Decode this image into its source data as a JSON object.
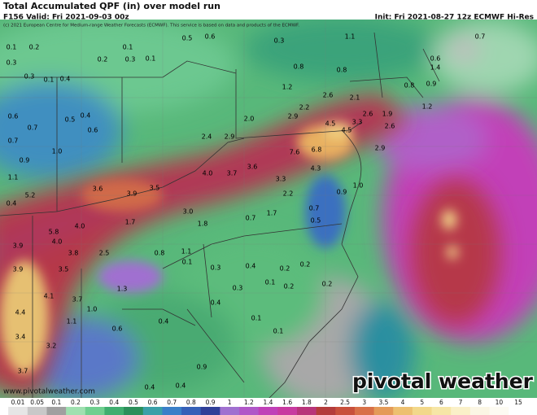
{
  "header": {
    "title": "Total Accumulated QPF (in) over model run",
    "valid": "F156 Valid: Fri 2021-09-03 00z",
    "init": "Init: Fri 2021-08-27 12z ECMWF Hi-Res",
    "copyright": "(c) 2021 European Centre for Medium-range Weather Forecasts (ECMWF). This service is based on data and products of the ECMWF."
  },
  "footer": {
    "url": "www.pivotalweather.com",
    "logo": "pivotal weather"
  },
  "map_labels": [
    "0.1",
    "0.2",
    "0.3",
    "0.3",
    "0.1",
    "0.4",
    "0.2",
    "0.1",
    "0.3",
    "0.1",
    "0.5",
    "0.6",
    "0.3",
    "1.1",
    "0.6",
    "0.7",
    "0.5",
    "0.4",
    "0.6",
    "0.7",
    "0.9",
    "1.0",
    "1.1",
    "0.4",
    "5.2",
    "5.8",
    "4.0",
    "4.0",
    "3.6",
    "3.9",
    "3.5",
    "1.7",
    "2.5",
    "3.8",
    "3.5",
    "3.9",
    "3.9",
    "4.1",
    "3.7",
    "4.4",
    "3.4",
    "3.2",
    "3.7",
    "2.4",
    "4.0",
    "3.7",
    "3.6",
    "3.3",
    "2.2",
    "2.9",
    "2.0",
    "2.9",
    "2.2",
    "2.6",
    "4.5",
    "4.5",
    "3.3",
    "7.6",
    "6.8",
    "4.3",
    "2.1",
    "2.6",
    "1.9",
    "2.6",
    "2.9",
    "1.2",
    "0.8",
    "0.8",
    "3.0",
    "1.8",
    "0.7",
    "1.7",
    "0.7",
    "0.5",
    "0.4",
    "0.2",
    "0.2",
    "0.1",
    "0.2",
    "0.2",
    "0.3",
    "0.3",
    "0.1",
    "0.8",
    "1.1",
    "1.3",
    "1.0",
    "1.1",
    "0.6",
    "0.4",
    "0.4",
    "0.1",
    "0.1",
    "0.4",
    "0.4",
    "0.9",
    "0.6",
    "1.4",
    "0.9",
    "1.2",
    "0.7",
    "0.8",
    "1.0",
    "0.9"
  ],
  "colorbar": {
    "labels": [
      "0.01",
      "0.05",
      "0.1",
      "0.2",
      "0.3",
      "0.4",
      "0.5",
      "0.6",
      "0.7",
      "0.8",
      "0.9",
      "1",
      "1.2",
      "1.4",
      "1.6",
      "1.8",
      "2",
      "2.5",
      "3",
      "3.5",
      "4",
      "5",
      "6",
      "7",
      "8",
      "10",
      "15"
    ],
    "colors": [
      "#e6e6e6",
      "#c8c8c8",
      "#a0a0a0",
      "#9fe0b0",
      "#6fcf8f",
      "#3fae6f",
      "#2b8f5a",
      "#3aa0a8",
      "#3a7fc8",
      "#3560b8",
      "#2f3f98",
      "#a070d0",
      "#b057c8",
      "#c040b8",
      "#c83aa0",
      "#b8347a",
      "#b43c3c",
      "#c8503c",
      "#d87048",
      "#e49a58",
      "#edc070",
      "#f2d88a",
      "#f6e6a6",
      "#faf0c8",
      "#fbf6e4",
      "#fdfbf2",
      "#ffffff"
    ]
  }
}
